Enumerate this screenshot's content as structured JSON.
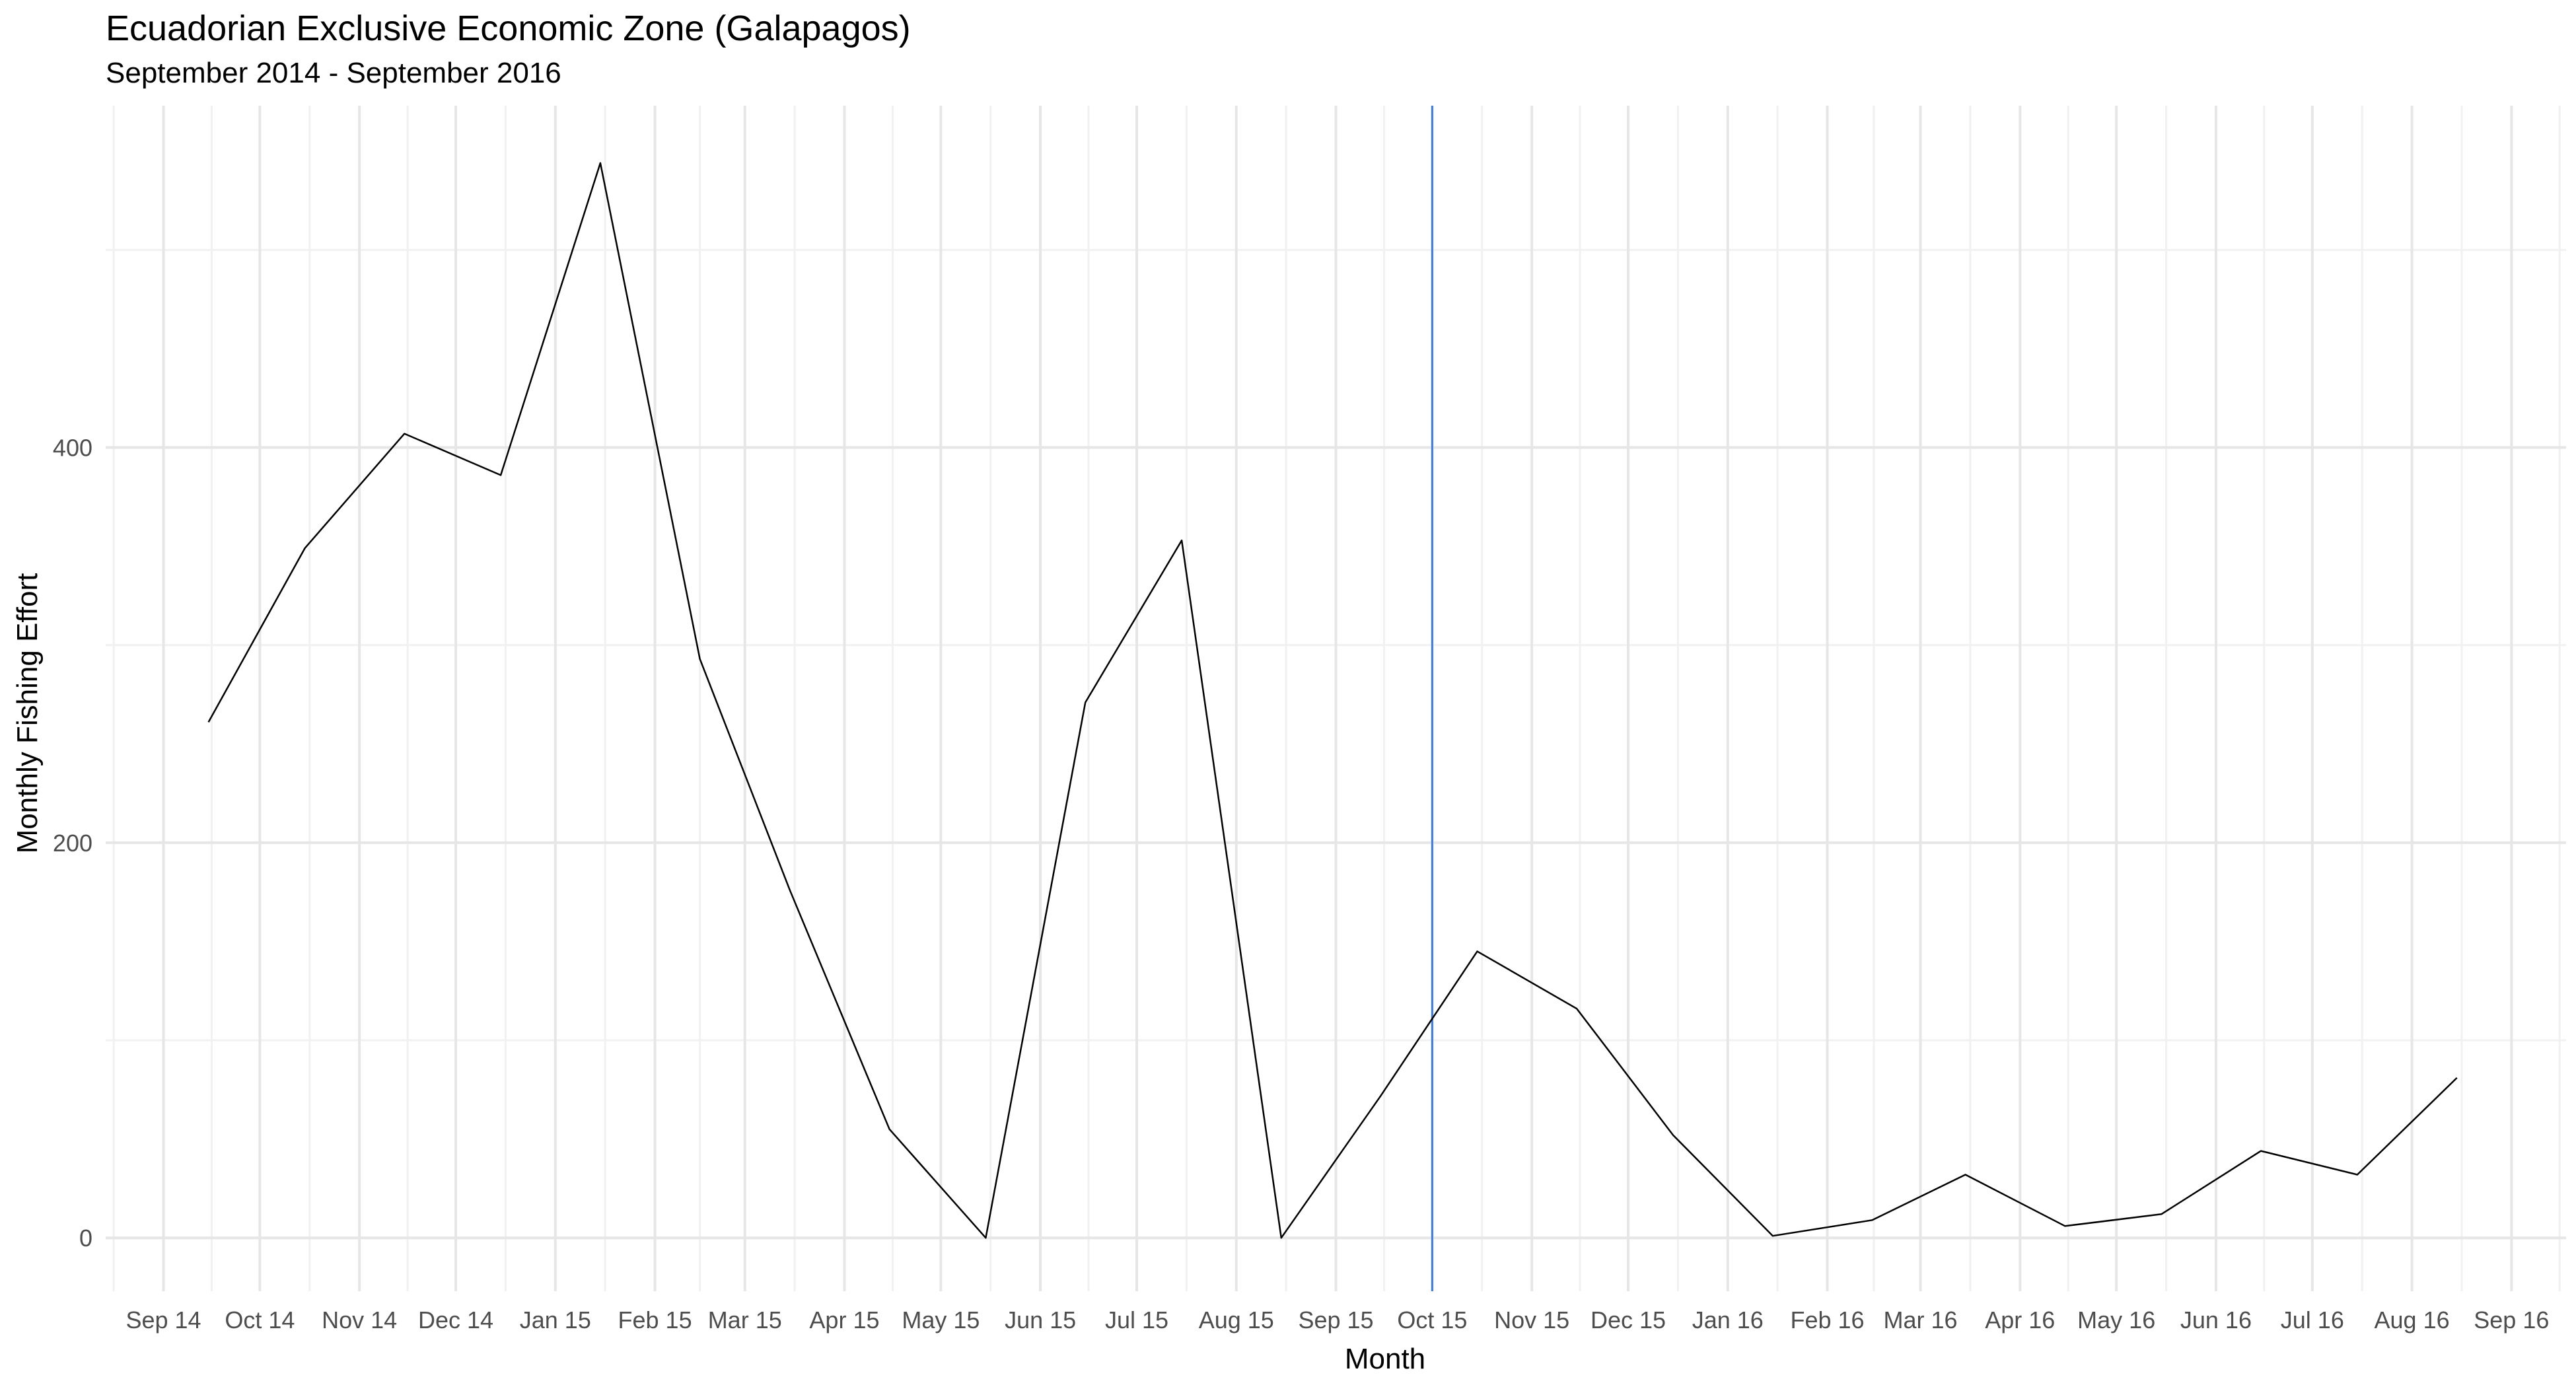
{
  "chart_data": {
    "type": "line",
    "title": "Ecuadorian Exclusive Economic Zone (Galapagos)",
    "subtitle": "September 2014 - September 2016",
    "xlabel": "Month",
    "ylabel": "Monthly Fishing Effort",
    "x_tick_labels": [
      "Sep 14",
      "Oct 14",
      "Nov 14",
      "Dec 14",
      "Jan 15",
      "Feb 15",
      "Mar 15",
      "Apr 15",
      "May 15",
      "Jun 15",
      "Jul 15",
      "Aug 15",
      "Sep 15",
      "Oct 15",
      "Nov 15",
      "Dec 15",
      "Jan 16",
      "Feb 16",
      "Mar 16",
      "Apr 16",
      "May 16",
      "Jun 16",
      "Jul 16",
      "Aug 16",
      "Sep 16"
    ],
    "y_ticks": [
      0,
      200,
      400
    ],
    "ylim": [
      -27,
      573
    ],
    "xlim": [
      "2014-08-14",
      "2016-09-18"
    ],
    "grid": true,
    "series": [
      {
        "color": "#000000",
        "x": [
          "2014-09-15",
          "2014-10-15",
          "2014-11-15",
          "2014-12-15",
          "2015-01-15",
          "2015-02-15",
          "2015-03-15",
          "2015-04-15",
          "2015-05-15",
          "2015-06-15",
          "2015-07-15",
          "2015-08-15",
          "2015-09-15",
          "2015-10-15",
          "2015-11-15",
          "2015-12-15",
          "2016-01-15",
          "2016-02-15",
          "2016-03-15",
          "2016-04-15",
          "2016-05-15",
          "2016-06-15",
          "2016-07-15",
          "2016-08-15"
        ],
        "values": [
          261,
          349,
          407,
          386,
          544,
          293,
          176,
          55,
          0,
          271,
          353,
          0,
          72,
          145,
          116,
          52,
          1,
          9,
          32,
          6,
          12,
          44,
          32,
          81
        ]
      }
    ],
    "annotations": [
      {
        "type": "vline",
        "x": "2015-10-01",
        "color": "#3b7de0"
      }
    ]
  }
}
